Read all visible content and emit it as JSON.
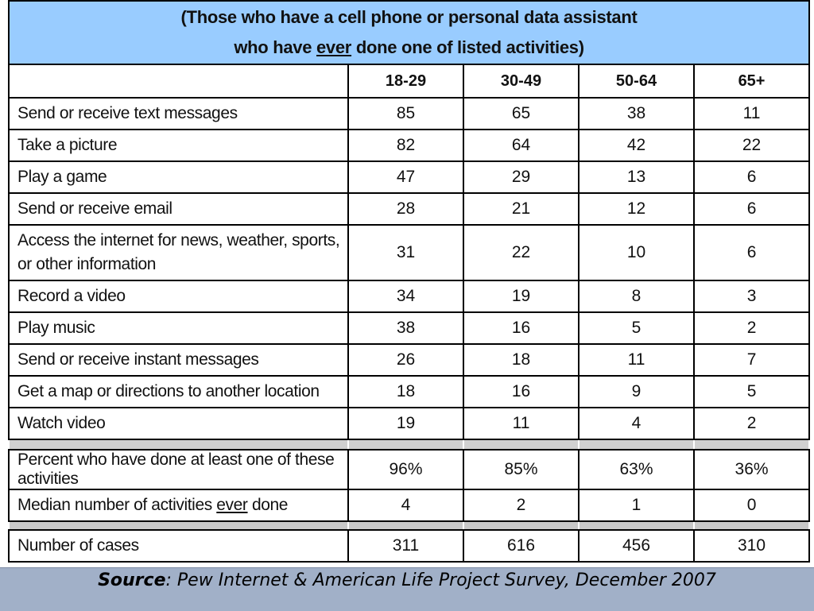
{
  "chart_data": {
    "type": "table",
    "title_line1": "(Those who have a cell phone or personal data assistant",
    "title_line2_pre": "who have ",
    "title_line2_em": "ever",
    "title_line2_post": " done one of listed activities)",
    "columns": [
      "18-29",
      "30-49",
      "50-64",
      "65+"
    ],
    "rows": [
      {
        "label": "Send or receive text messages",
        "values": [
          "85",
          "65",
          "38",
          "11"
        ]
      },
      {
        "label": "Take a picture",
        "values": [
          "82",
          "64",
          "42",
          "22"
        ]
      },
      {
        "label": "Play a game",
        "values": [
          "47",
          "29",
          "13",
          "6"
        ]
      },
      {
        "label": "Send or receive email",
        "values": [
          "28",
          "21",
          "12",
          "6"
        ]
      },
      {
        "label": "Access the internet for news, weather, sports, or other information",
        "values": [
          "31",
          "22",
          "10",
          "6"
        ]
      },
      {
        "label": "Record a video",
        "values": [
          "34",
          "19",
          "8",
          "3"
        ]
      },
      {
        "label": "Play music",
        "values": [
          "38",
          "16",
          "5",
          "2"
        ]
      },
      {
        "label": "Send or receive instant messages",
        "values": [
          "26",
          "18",
          "11",
          "7"
        ]
      },
      {
        "label": "Get a map or directions to another location",
        "values": [
          "18",
          "16",
          "9",
          "5"
        ]
      },
      {
        "label": "Watch video",
        "values": [
          "19",
          "11",
          "4",
          "2"
        ]
      }
    ],
    "summary_rows": [
      {
        "label": "Percent who have done at least one of these activities",
        "values": [
          "96%",
          "85%",
          "63%",
          "36%"
        ]
      },
      {
        "label_pre": "Median number of activities ",
        "label_em": "ever",
        "label_post": " done",
        "values": [
          "4",
          "2",
          "1",
          "0"
        ]
      }
    ],
    "cases_row": {
      "label": "Number of cases",
      "values": [
        "311",
        "616",
        "456",
        "310"
      ]
    }
  },
  "source": {
    "label": "Source",
    "separator": ": ",
    "text": "Pew Internet & American Life Project Survey, December 2007"
  },
  "colors": {
    "title_bg": "#99ccff",
    "source_bg": "#a1b0c8",
    "separator_gray": "#d0d0d0"
  }
}
